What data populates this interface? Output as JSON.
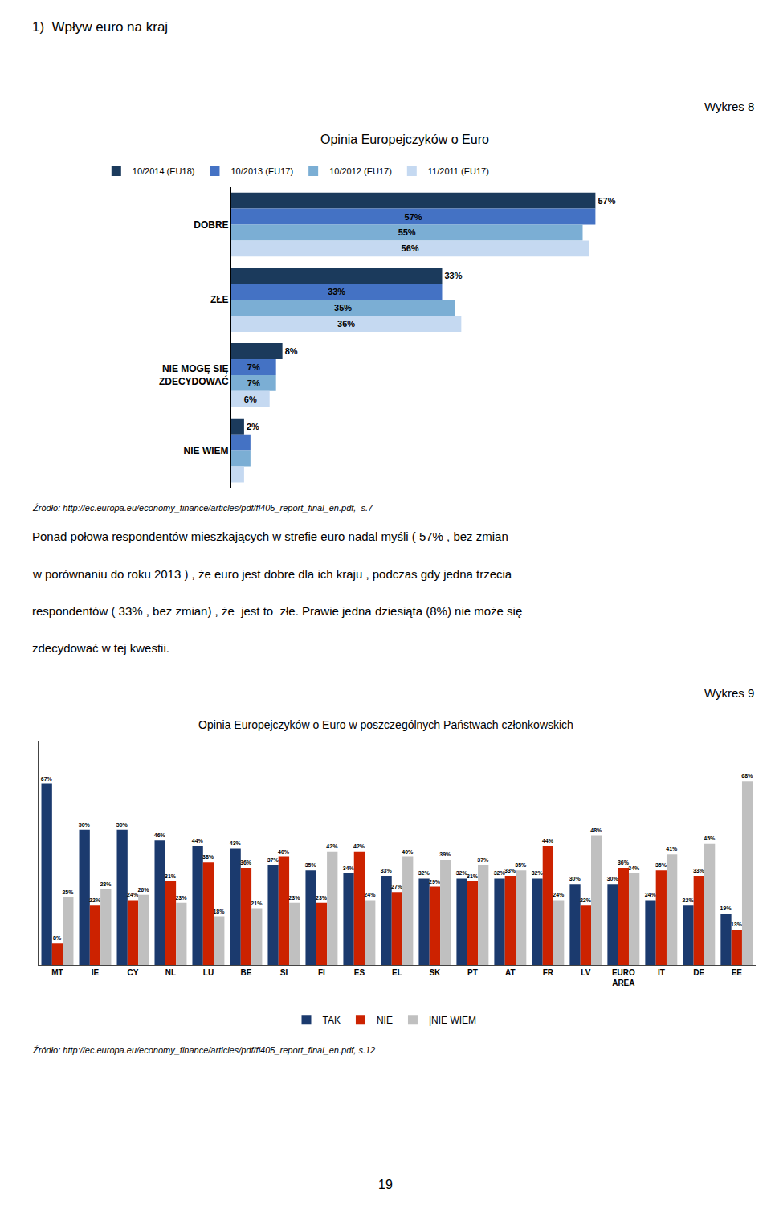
{
  "chart_data": [
    {
      "type": "bar",
      "orientation": "horizontal",
      "title": "Opinia Europejczyków o Euro",
      "categories": [
        "DOBRE",
        "ZŁE",
        "NIE MOGĘ SIĘ\nZDECYDOWAĆ",
        "NIE WIEM"
      ],
      "series": [
        {
          "name": "10/2014 (EU18)",
          "color": "#1b3a5c",
          "values": [
            57,
            33,
            8,
            2
          ],
          "value_labels": [
            "57%",
            "33%",
            "8%",
            "2%"
          ]
        },
        {
          "name": "10/2013 (EU17)",
          "color": "#4472c4",
          "values": [
            57,
            33,
            7,
            3
          ],
          "value_labels": [
            "57%",
            "33%",
            "7%",
            null
          ]
        },
        {
          "name": "10/2012 (EU17)",
          "color": "#7baed4",
          "values": [
            55,
            35,
            7,
            3
          ],
          "value_labels": [
            "55%",
            "35%",
            "7%",
            null
          ]
        },
        {
          "name": "11/2011 (EU17)",
          "color": "#c5d9f1",
          "values": [
            56,
            36,
            6,
            2
          ],
          "value_labels": [
            "56%",
            "36%",
            "6%",
            null
          ]
        }
      ],
      "xlim": [
        0,
        70
      ],
      "grid": false,
      "legend": "top",
      "data_labels": true,
      "tick_labels": "y",
      "annotations": [
        "1)  Wpływ euro na kraj",
        "Wykres 8",
        "Źródło: http://ec.europa.eu/economy_finance/articles/pdf/fl405_report_final_en.pdf,  s.7",
        "Ponad połowa respondentów mieszkających w strefie euro nadal myśli ( 57% , bez zmian",
        "w porównaniu do roku 2013 ) , że euro jest dobre dla ich kraju , podczas gdy jedna trzecia",
        "respondentów ( 33% , bez zmian) , że  jest to  złe. Prawie jedna dziesiąta (8%) nie może się",
        "zdecydować w tej kwestii."
      ]
    },
    {
      "type": "bar",
      "title": "Opinia Europejczyków o Euro w poszczególnych Państwach członkowskich",
      "categories": [
        "MT",
        "IE",
        "CY",
        "NL",
        "LU",
        "BE",
        "SI",
        "FI",
        "ES",
        "EL",
        "SK",
        "PT",
        "AT",
        "FR",
        "LV",
        "EURO\nAREA",
        "IT",
        "DE",
        "EE"
      ],
      "series": [
        {
          "name": "TAK",
          "color": "#1b3a6e",
          "values": [
            67,
            50,
            50,
            46,
            44,
            43,
            37,
            35,
            34,
            33,
            32,
            32,
            32,
            32,
            30,
            30,
            24,
            22,
            19
          ],
          "value_labels": [
            "67%",
            "50%",
            "50%",
            "46%",
            "44%",
            "43%",
            "37%",
            "35%",
            "34%",
            "33%",
            "32%",
            "32%",
            "32%",
            "32%",
            "30%",
            "30%",
            "24%",
            "22%",
            "19%"
          ]
        },
        {
          "name": "NIE",
          "color": "#cc2200",
          "values": [
            8,
            22,
            24,
            31,
            38,
            36,
            40,
            23,
            42,
            27,
            29,
            31,
            33,
            44,
            22,
            36,
            35,
            33,
            13
          ],
          "value_labels": [
            "8%",
            "22%",
            "24%",
            "31%",
            "38%",
            "36%",
            "40%",
            "23%",
            "42%",
            "27%",
            "29%",
            "31%",
            "33%",
            "44%",
            "22%",
            "36%",
            "35%",
            "33%",
            "13%"
          ]
        },
        {
          "name": "|NIE WIEM",
          "color": "#c0c0c0",
          "values": [
            25,
            28,
            26,
            23,
            18,
            21,
            23,
            42,
            24,
            40,
            39,
            37,
            35,
            24,
            48,
            34,
            41,
            45,
            68
          ],
          "value_labels": [
            "25%",
            "28%",
            "26%",
            "23%",
            "18%",
            "21%",
            "23%",
            "42%",
            "24%",
            "40%",
            "39%",
            "37%",
            "35%",
            "24%",
            "48%",
            "34%",
            "41%",
            "45%",
            "68%"
          ]
        }
      ],
      "ylim": [
        0,
        83
      ],
      "grid": false,
      "legend": "bottom",
      "data_labels": true,
      "tick_labels": "x",
      "annotations": [
        "Wykres 9",
        "Źródło: http://ec.europa.eu/economy_finance/articles/pdf/fl405_report_final_en.pdf, s.12",
        "19"
      ]
    }
  ]
}
